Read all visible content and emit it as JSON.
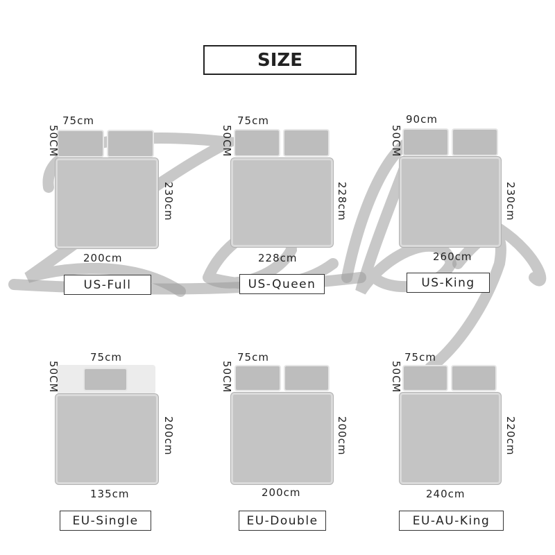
{
  "title": "SIZE",
  "watermark": "Zeby",
  "colors": {
    "bed": "#c4c4c4",
    "pillow": "#bdbdbd",
    "watermark": "#9a9a9a"
  },
  "sizes": [
    {
      "name": "US-Full",
      "pillow_width": "75cm",
      "pillow_height": "50CM",
      "length": "230cm",
      "width": "200cm",
      "pillows": 2
    },
    {
      "name": "US-Queen",
      "pillow_width": "75cm",
      "pillow_height": "50CM",
      "length": "228cm",
      "width": "228cm",
      "pillows": 2
    },
    {
      "name": "US-King",
      "pillow_width": "90cm",
      "pillow_height": "50CM",
      "length": "230cm",
      "width": "260cm",
      "pillows": 2
    },
    {
      "name": "EU-Single",
      "pillow_width": "75cm",
      "pillow_height": "50CM",
      "length": "200cm",
      "width": "135cm",
      "pillows": 1
    },
    {
      "name": "EU-Double",
      "pillow_width": "75cm",
      "pillow_height": "50CM",
      "length": "200cm",
      "width": "200cm",
      "pillows": 2
    },
    {
      "name": "EU-AU-King",
      "pillow_width": "75cm",
      "pillow_height": "50CM",
      "length": "220cm",
      "width": "240cm",
      "pillows": 2
    }
  ]
}
